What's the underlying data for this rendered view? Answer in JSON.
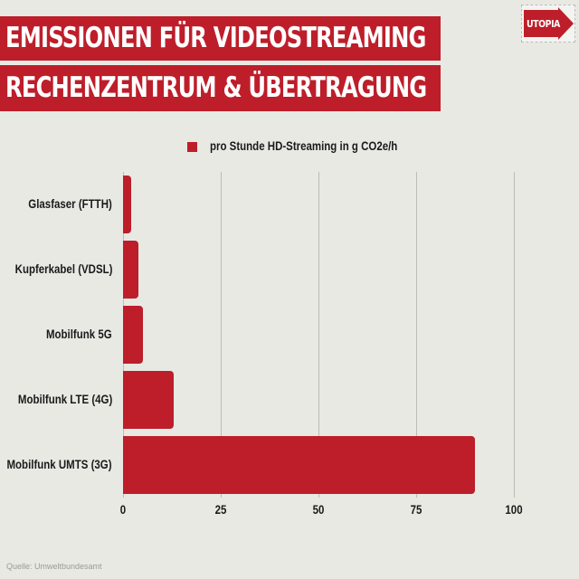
{
  "header": {
    "title_line1": "EMISSIONEN FÜR VIDEOSTREAMING",
    "title_line2": "RECHENZENTRUM & ÜBERTRAGUNG",
    "logo_text": "UTOPIA",
    "accent_color": "#bd1e2a"
  },
  "legend": {
    "label": "pro Stunde HD-Streaming in g CO2e/h"
  },
  "axis": {
    "ticks": [
      "0",
      "25",
      "50",
      "75",
      "100"
    ]
  },
  "categories": [
    "Glasfaser (FTTH)",
    "Kupferkabel (VDSL)",
    "Mobilfunk 5G",
    "Mobilfunk LTE (4G)",
    "Mobilfunk UMTS (3G)"
  ],
  "footer": {
    "source": "Quelle: Umweltbundesamt"
  },
  "chart_data": {
    "type": "bar",
    "orientation": "horizontal",
    "title": "EMISSIONEN FÜR VIDEOSTREAMING – RECHENZENTRUM & ÜBERTRAGUNG",
    "categories": [
      "Glasfaser (FTTH)",
      "Kupferkabel (VDSL)",
      "Mobilfunk 5G",
      "Mobilfunk LTE (4G)",
      "Mobilfunk UMTS (3G)"
    ],
    "series": [
      {
        "name": "pro Stunde HD-Streaming in g CO2e/h",
        "values": [
          2,
          4,
          5,
          13,
          90
        ],
        "color": "#bd1e2a"
      }
    ],
    "xlabel": "",
    "ylabel": "",
    "xlim": [
      0,
      100
    ],
    "xticks": [
      0,
      25,
      50,
      75,
      100
    ],
    "grid": true,
    "legend_position": "top",
    "source": "Quelle: Umweltbundesamt"
  }
}
